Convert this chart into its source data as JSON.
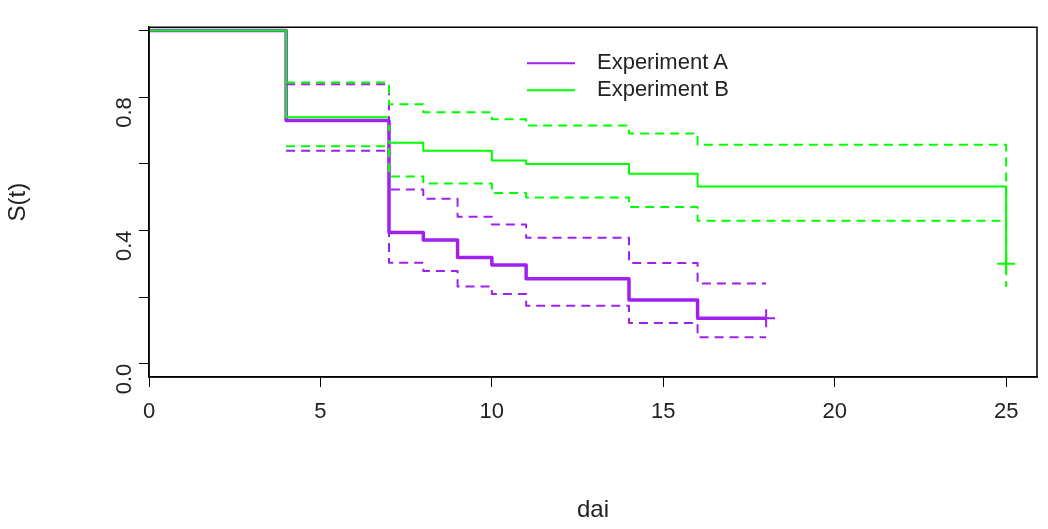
{
  "chart_data": {
    "type": "step",
    "xlabel": "dai",
    "ylabel": "S(t)",
    "xlim": [
      0,
      25.9
    ],
    "xticks": [
      0,
      5,
      10,
      15,
      20,
      25
    ],
    "ylim": [
      -0.04,
      1.01
    ],
    "yticks": [
      {
        "value": 0,
        "label": "0.0"
      },
      {
        "value": 0.2,
        "label": null
      },
      0.4,
      {
        "value": 0.6,
        "label": null
      },
      0.8,
      {
        "value": 1,
        "label": null
      }
    ],
    "grid": false,
    "legend": "top",
    "series": [
      {
        "name": "Experiment A",
        "color": "#a020f0",
        "x": [
          0,
          4,
          7,
          8,
          9,
          10,
          11,
          14,
          16,
          18
        ],
        "values": [
          1,
          0.73,
          0.394,
          0.371,
          0.319,
          0.296,
          0.255,
          0.191,
          0.136,
          0.136
        ]
      },
      {
        "name": "Experiment B",
        "color": "#00ff00",
        "x": [
          0,
          4,
          7,
          8,
          10,
          11,
          14,
          16,
          25
        ],
        "values": [
          1,
          0.74,
          0.663,
          0.639,
          0.61,
          0.599,
          0.57,
          0.532,
          0.3
        ]
      },
      {
        "color": "#a020f0",
        "line_style": "dashed",
        "x": [
          4,
          7,
          8,
          9,
          10,
          11,
          14,
          16,
          18
        ],
        "values": [
          0.839,
          0.523,
          0.495,
          0.441,
          0.418,
          0.378,
          0.302,
          0.241,
          0.241
        ]
      },
      {
        "color": "#a020f0",
        "line_style": "dashed",
        "x": [
          4,
          7,
          8,
          9,
          10,
          11,
          14,
          16,
          18
        ],
        "values": [
          0.639,
          0.303,
          0.278,
          0.232,
          0.209,
          0.174,
          0.122,
          0.079,
          0.079
        ]
      },
      {
        "color": "#00ff00",
        "line_style": "dashed",
        "x": [
          4,
          7,
          8,
          10,
          11,
          14,
          16,
          25
        ],
        "values": [
          0.844,
          0.779,
          0.755,
          0.734,
          0.715,
          0.691,
          0.657,
          0.43
        ]
      },
      {
        "color": "#00ff00",
        "line_style": "dashed",
        "x": [
          4,
          7,
          8,
          10,
          11,
          14,
          16,
          25
        ],
        "values": [
          0.653,
          0.562,
          0.541,
          0.512,
          0.499,
          0.47,
          0.429,
          0.23
        ]
      },
      {
        "type": "scatter",
        "marker": "cross",
        "color": "#a020f0",
        "x": [
          18
        ],
        "values": [
          0.136
        ]
      },
      {
        "type": "scatter",
        "marker": "cross",
        "color": "#00ff00",
        "x": [
          25
        ],
        "values": [
          0.3
        ]
      }
    ]
  }
}
